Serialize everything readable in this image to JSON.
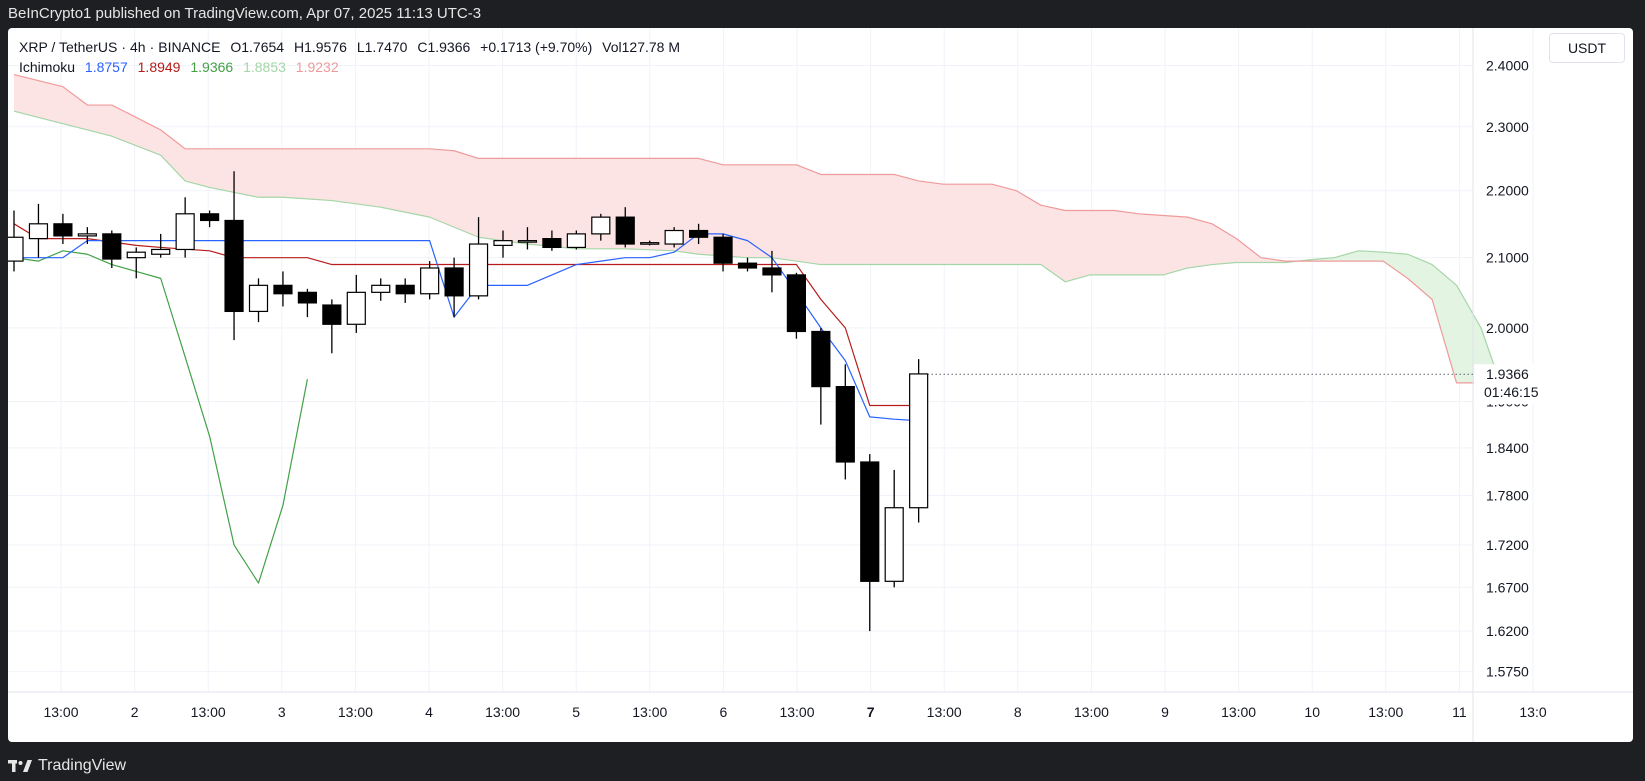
{
  "header": {
    "publisher_line": "BeInCrypto1 published on TradingView.com, Apr 07, 2025 11:13 UTC-3"
  },
  "legend": {
    "symbol": "XRP / TetherUS",
    "interval": "4h",
    "exchange": "BINANCE",
    "open_label": "O",
    "open": "1.7654",
    "high_label": "H",
    "high": "1.9576",
    "low_label": "L",
    "low": "1.7470",
    "close_label": "C",
    "close": "1.9366",
    "change": "+0.1713 (+9.70%)",
    "volume_label": "Vol",
    "volume": "127.78 M",
    "ichimoku_label": "Ichimoku",
    "ichimoku_values": [
      "1.8757",
      "1.8949",
      "1.9366",
      "1.8853",
      "1.9232"
    ]
  },
  "currency_button": "USDT",
  "footer": {
    "brand": "TradingView"
  },
  "colors": {
    "conversion_line": "#2962ff",
    "base_line": "#b71c1c",
    "lagging_span": "#43a047",
    "leading_span_a": "#a5d6a7",
    "leading_span_b": "#ef9a9a",
    "cloud_bearish_fill": "#fde4e4",
    "cloud_bullish_fill": "#e3f4e3",
    "candle_up_body": "#ffffff",
    "candle_down_body": "#000000",
    "candle_outline": "#000000"
  },
  "chart_data": {
    "type": "candlestick",
    "title": "XRP / TetherUS · 4h · BINANCE",
    "indicator": "Ichimoku",
    "y_axis": {
      "ticks": [
        "2.4000",
        "2.3000",
        "2.2000",
        "2.1000",
        "2.0000",
        "1.9000",
        "1.8400",
        "1.7800",
        "1.7200",
        "1.6700",
        "1.6200",
        "1.5750"
      ],
      "scale": "log",
      "ylim": [
        1.555,
        2.46
      ],
      "last_price_label": "1.9366",
      "countdown_label": "01:46:15"
    },
    "x_axis": {
      "ticks": [
        "13:00",
        "2",
        "13:00",
        "3",
        "13:00",
        "4",
        "13:00",
        "5",
        "13:00",
        "6",
        "13:00",
        "7",
        "13:00",
        "8",
        "13:00",
        "9",
        "13:00",
        "10",
        "13:00",
        "11",
        "13:0"
      ],
      "bold_tick": "7"
    },
    "candles": [
      {
        "o": 2.095,
        "h": 2.17,
        "l": 2.08,
        "c": 2.13
      },
      {
        "o": 2.128,
        "h": 2.18,
        "l": 2.1,
        "c": 2.15
      },
      {
        "o": 2.15,
        "h": 2.165,
        "l": 2.12,
        "c": 2.132
      },
      {
        "o": 2.132,
        "h": 2.145,
        "l": 2.12,
        "c": 2.135
      },
      {
        "o": 2.135,
        "h": 2.14,
        "l": 2.085,
        "c": 2.098
      },
      {
        "o": 2.1,
        "h": 2.115,
        "l": 2.07,
        "c": 2.108
      },
      {
        "o": 2.105,
        "h": 2.135,
        "l": 2.1,
        "c": 2.112
      },
      {
        "o": 2.112,
        "h": 2.19,
        "l": 2.1,
        "c": 2.165
      },
      {
        "o": 2.165,
        "h": 2.17,
        "l": 2.145,
        "c": 2.155
      },
      {
        "o": 2.155,
        "h": 2.23,
        "l": 1.983,
        "c": 2.023
      },
      {
        "o": 2.023,
        "h": 2.07,
        "l": 2.008,
        "c": 2.06
      },
      {
        "o": 2.06,
        "h": 2.08,
        "l": 2.03,
        "c": 2.048
      },
      {
        "o": 2.05,
        "h": 2.055,
        "l": 2.015,
        "c": 2.035
      },
      {
        "o": 2.032,
        "h": 2.04,
        "l": 1.965,
        "c": 2.005
      },
      {
        "o": 2.005,
        "h": 2.075,
        "l": 1.993,
        "c": 2.05
      },
      {
        "o": 2.05,
        "h": 2.07,
        "l": 2.038,
        "c": 2.06
      },
      {
        "o": 2.06,
        "h": 2.07,
        "l": 2.035,
        "c": 2.048
      },
      {
        "o": 2.048,
        "h": 2.095,
        "l": 2.04,
        "c": 2.085
      },
      {
        "o": 2.085,
        "h": 2.1,
        "l": 2.015,
        "c": 2.045
      },
      {
        "o": 2.045,
        "h": 2.16,
        "l": 2.04,
        "c": 2.12
      },
      {
        "o": 2.118,
        "h": 2.14,
        "l": 2.1,
        "c": 2.125
      },
      {
        "o": 2.125,
        "h": 2.145,
        "l": 2.112,
        "c": 2.125
      },
      {
        "o": 2.128,
        "h": 2.14,
        "l": 2.11,
        "c": 2.115
      },
      {
        "o": 2.115,
        "h": 2.14,
        "l": 2.112,
        "c": 2.135
      },
      {
        "o": 2.135,
        "h": 2.165,
        "l": 2.125,
        "c": 2.16
      },
      {
        "o": 2.16,
        "h": 2.175,
        "l": 2.115,
        "c": 2.12
      },
      {
        "o": 2.12,
        "h": 2.125,
        "l": 2.118,
        "c": 2.122
      },
      {
        "o": 2.12,
        "h": 2.145,
        "l": 2.115,
        "c": 2.14
      },
      {
        "o": 2.14,
        "h": 2.15,
        "l": 2.12,
        "c": 2.13
      },
      {
        "o": 2.13,
        "h": 2.135,
        "l": 2.08,
        "c": 2.092
      },
      {
        "o": 2.092,
        "h": 2.1,
        "l": 2.08,
        "c": 2.085
      },
      {
        "o": 2.085,
        "h": 2.11,
        "l": 2.05,
        "c": 2.075
      },
      {
        "o": 2.075,
        "h": 2.078,
        "l": 1.985,
        "c": 1.995
      },
      {
        "o": 1.995,
        "h": 2.0,
        "l": 1.87,
        "c": 1.92
      },
      {
        "o": 1.92,
        "h": 1.95,
        "l": 1.8,
        "c": 1.822
      },
      {
        "o": 1.822,
        "h": 1.832,
        "l": 1.62,
        "c": 1.677
      },
      {
        "o": 1.677,
        "h": 1.812,
        "l": 1.67,
        "c": 1.765
      },
      {
        "o": 1.765,
        "h": 1.957,
        "l": 1.747,
        "c": 1.937
      }
    ],
    "ichimoku": {
      "conversion_line": [
        [
          0,
          2.1
        ],
        [
          2,
          2.1
        ],
        [
          3,
          2.125
        ],
        [
          4,
          2.125
        ],
        [
          5,
          2.125
        ],
        [
          6,
          2.125
        ],
        [
          7,
          2.125
        ],
        [
          8,
          2.125
        ],
        [
          9,
          2.125
        ],
        [
          10,
          2.125
        ],
        [
          11,
          2.125
        ],
        [
          12,
          2.125
        ],
        [
          13,
          2.125
        ],
        [
          14,
          2.125
        ],
        [
          15,
          2.125
        ],
        [
          16,
          2.125
        ],
        [
          17,
          2.125
        ],
        [
          18,
          2.015
        ],
        [
          19,
          2.06
        ],
        [
          20,
          2.06
        ],
        [
          21,
          2.06
        ],
        [
          22,
          2.075
        ],
        [
          23,
          2.09
        ],
        [
          24,
          2.095
        ],
        [
          25,
          2.1
        ],
        [
          26,
          2.1
        ],
        [
          27,
          2.108
        ],
        [
          28,
          2.135
        ],
        [
          29,
          2.135
        ],
        [
          30,
          2.125
        ],
        [
          31,
          2.1
        ],
        [
          32,
          2.05
        ],
        [
          33,
          2.0
        ],
        [
          34,
          1.955
        ],
        [
          35,
          1.88
        ],
        [
          36,
          1.877
        ],
        [
          37,
          1.875
        ]
      ],
      "base_line": [
        [
          0,
          2.15
        ],
        [
          1,
          2.128
        ],
        [
          3,
          2.128
        ],
        [
          5,
          2.118
        ],
        [
          6,
          2.115
        ],
        [
          8,
          2.11
        ],
        [
          9,
          2.1
        ],
        [
          12,
          2.1
        ],
        [
          13,
          2.09
        ],
        [
          24,
          2.09
        ],
        [
          25,
          2.09
        ],
        [
          31,
          2.09
        ],
        [
          32,
          2.09
        ],
        [
          33,
          2.04
        ],
        [
          34,
          2.0
        ],
        [
          35,
          1.895
        ],
        [
          36,
          1.895
        ],
        [
          37,
          1.895
        ]
      ],
      "lagging_span": [
        [
          0,
          2.1
        ],
        [
          1,
          2.095
        ],
        [
          2,
          2.11
        ],
        [
          3,
          2.105
        ],
        [
          4,
          2.09
        ],
        [
          5,
          2.08
        ],
        [
          6,
          2.07
        ],
        [
          7,
          1.96
        ],
        [
          8,
          1.855
        ],
        [
          9,
          1.72
        ],
        [
          10,
          1.675
        ],
        [
          11,
          1.768
        ],
        [
          12,
          1.93
        ]
      ],
      "leading_span_a": [
        [
          0,
          2.325
        ],
        [
          2,
          2.305
        ],
        [
          4,
          2.285
        ],
        [
          6,
          2.255
        ],
        [
          7,
          2.215
        ],
        [
          8,
          2.205
        ],
        [
          10,
          2.19
        ],
        [
          11,
          2.19
        ],
        [
          13,
          2.185
        ],
        [
          15,
          2.175
        ],
        [
          17,
          2.16
        ],
        [
          19,
          2.13
        ],
        [
          21,
          2.12
        ],
        [
          23,
          2.113
        ],
        [
          25,
          2.113
        ],
        [
          27,
          2.11
        ],
        [
          28,
          2.105
        ],
        [
          30,
          2.1
        ],
        [
          31,
          2.1
        ],
        [
          33,
          2.09
        ],
        [
          37,
          2.09
        ],
        [
          38,
          2.09
        ],
        [
          41,
          2.09
        ],
        [
          42,
          2.09
        ],
        [
          43,
          2.065
        ],
        [
          44,
          2.075
        ],
        [
          47,
          2.075
        ],
        [
          48,
          2.085
        ],
        [
          49,
          2.09
        ],
        [
          50,
          2.093
        ],
        [
          52,
          2.093
        ],
        [
          53,
          2.097
        ],
        [
          54,
          2.1
        ],
        [
          55,
          2.11
        ],
        [
          56,
          2.108
        ],
        [
          57,
          2.105
        ],
        [
          58,
          2.09
        ],
        [
          59,
          2.06
        ],
        [
          60,
          2.0
        ],
        [
          61,
          1.905
        ],
        [
          62,
          1.9
        ]
      ],
      "leading_span_b": [
        [
          0,
          2.385
        ],
        [
          2,
          2.365
        ],
        [
          3,
          2.335
        ],
        [
          4,
          2.335
        ],
        [
          5,
          2.315
        ],
        [
          6,
          2.295
        ],
        [
          7,
          2.265
        ],
        [
          8,
          2.265
        ],
        [
          17,
          2.265
        ],
        [
          18,
          2.262
        ],
        [
          19,
          2.25
        ],
        [
          28,
          2.25
        ],
        [
          29,
          2.24
        ],
        [
          32,
          2.24
        ],
        [
          33,
          2.225
        ],
        [
          36,
          2.225
        ],
        [
          37,
          2.215
        ],
        [
          38,
          2.21
        ],
        [
          40,
          2.21
        ],
        [
          41,
          2.2
        ],
        [
          42,
          2.178
        ],
        [
          43,
          2.17
        ],
        [
          45,
          2.17
        ],
        [
          46,
          2.165
        ],
        [
          48,
          2.16
        ],
        [
          49,
          2.15
        ],
        [
          50,
          2.128
        ],
        [
          51,
          2.1
        ],
        [
          52,
          2.095
        ],
        [
          56,
          2.095
        ],
        [
          57,
          2.07
        ],
        [
          58,
          2.04
        ],
        [
          59,
          1.925
        ],
        [
          62,
          1.925
        ]
      ]
    }
  }
}
